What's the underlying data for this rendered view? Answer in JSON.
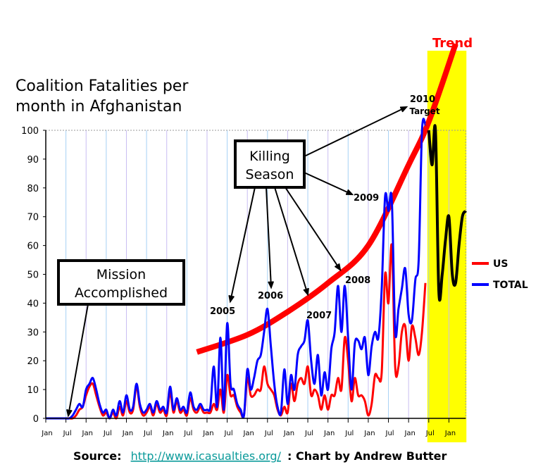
{
  "chart_data": {
    "type": "line",
    "title": "Coalition Fatalities per month in Afghanistan",
    "title_lines": [
      "Coalition Fatalities per",
      "month in Afghanistan"
    ],
    "xlabel": "",
    "ylabel": "",
    "ylim": [
      0,
      100
    ],
    "xlim": [
      "2001-01",
      "2011-06"
    ],
    "yticks": [
      0,
      10,
      20,
      30,
      40,
      50,
      60,
      70,
      80,
      90,
      100
    ],
    "xticks": [
      {
        "x": "2001-01",
        "label": "Jan"
      },
      {
        "x": "2001-07",
        "label": "Jul"
      },
      {
        "x": "2002-01",
        "label": "Jan"
      },
      {
        "x": "2002-07",
        "label": "Jul"
      },
      {
        "x": "2003-01",
        "label": "Jan"
      },
      {
        "x": "2003-07",
        "label": "Jul"
      },
      {
        "x": "2004-01",
        "label": "Jan"
      },
      {
        "x": "2004-07",
        "label": "Jul"
      },
      {
        "x": "2005-01",
        "label": "Jan"
      },
      {
        "x": "2005-07",
        "label": "Jul"
      },
      {
        "x": "2006-01",
        "label": "Jan"
      },
      {
        "x": "2006-07",
        "label": "Jul"
      },
      {
        "x": "2007-01",
        "label": "Jan"
      },
      {
        "x": "2007-07",
        "label": "Jul"
      },
      {
        "x": "2008-01",
        "label": "Jan"
      },
      {
        "x": "2008-07",
        "label": "Jul"
      },
      {
        "x": "2009-01",
        "label": "Jan"
      },
      {
        "x": "2009-07",
        "label": "Jul"
      },
      {
        "x": "2010-01",
        "label": "Jan"
      },
      {
        "x": "2010-07",
        "label": "Jul"
      },
      {
        "x": "2011-01",
        "label": "Jan"
      }
    ],
    "grid": "vertical",
    "legend_placement": "right",
    "x": [
      "2001-01",
      "2001-02",
      "2001-03",
      "2001-04",
      "2001-05",
      "2001-06",
      "2001-07",
      "2001-08",
      "2001-09",
      "2001-10",
      "2001-11",
      "2001-12",
      "2002-01",
      "2002-02",
      "2002-03",
      "2002-04",
      "2002-05",
      "2002-06",
      "2002-07",
      "2002-08",
      "2002-09",
      "2002-10",
      "2002-11",
      "2002-12",
      "2003-01",
      "2003-02",
      "2003-03",
      "2003-04",
      "2003-05",
      "2003-06",
      "2003-07",
      "2003-08",
      "2003-09",
      "2003-10",
      "2003-11",
      "2003-12",
      "2004-01",
      "2004-02",
      "2004-03",
      "2004-04",
      "2004-05",
      "2004-06",
      "2004-07",
      "2004-08",
      "2004-09",
      "2004-10",
      "2004-11",
      "2004-12",
      "2005-01",
      "2005-02",
      "2005-03",
      "2005-04",
      "2005-05",
      "2005-06",
      "2005-07",
      "2005-08",
      "2005-09",
      "2005-10",
      "2005-11",
      "2005-12",
      "2006-01",
      "2006-02",
      "2006-03",
      "2006-04",
      "2006-05",
      "2006-06",
      "2006-07",
      "2006-08",
      "2006-09",
      "2006-10",
      "2006-11",
      "2006-12",
      "2007-01",
      "2007-02",
      "2007-03",
      "2007-04",
      "2007-05",
      "2007-06",
      "2007-07",
      "2007-08",
      "2007-09",
      "2007-10",
      "2007-11",
      "2007-12",
      "2008-01",
      "2008-02",
      "2008-03",
      "2008-04",
      "2008-05",
      "2008-06",
      "2008-07",
      "2008-08",
      "2008-09",
      "2008-10",
      "2008-11",
      "2008-12",
      "2009-01",
      "2009-02",
      "2009-03",
      "2009-04",
      "2009-05",
      "2009-06",
      "2009-07",
      "2009-08",
      "2009-09",
      "2009-10",
      "2009-11",
      "2009-12",
      "2010-01",
      "2010-02",
      "2010-03",
      "2010-04",
      "2010-05",
      "2010-06"
    ],
    "series": [
      {
        "name": "US",
        "color": "#ff0000",
        "values": [
          0,
          0,
          0,
          0,
          0,
          0,
          0,
          0,
          0,
          1,
          3,
          4,
          8,
          11,
          12,
          8,
          4,
          1,
          2,
          0,
          2,
          0,
          4,
          1,
          6,
          2,
          3,
          11,
          4,
          1,
          2,
          4,
          1,
          5,
          2,
          3,
          1,
          9,
          2,
          6,
          2,
          3,
          1,
          7,
          3,
          2,
          4,
          2,
          2,
          2,
          5,
          3,
          10,
          2,
          15,
          8,
          8,
          4,
          2,
          1,
          14,
          8,
          8,
          10,
          10,
          18,
          12,
          10,
          8,
          3,
          1,
          4,
          2,
          12,
          6,
          12,
          14,
          12,
          18,
          8,
          10,
          8,
          3,
          8,
          3,
          8,
          8,
          14,
          10,
          28,
          20,
          6,
          14,
          8,
          8,
          6,
          1,
          5,
          15,
          14,
          16,
          50,
          40,
          60,
          18,
          18,
          30,
          32,
          20,
          32,
          28,
          22,
          30,
          47
        ]
      },
      {
        "name": "TOTAL",
        "color": "#0000ff",
        "values": [
          0,
          0,
          0,
          0,
          0,
          0,
          0,
          0,
          1,
          3,
          5,
          4,
          10,
          12,
          14,
          10,
          5,
          2,
          3,
          0,
          3,
          1,
          6,
          2,
          8,
          3,
          4,
          12,
          5,
          2,
          3,
          5,
          2,
          6,
          3,
          4,
          2,
          11,
          3,
          7,
          3,
          4,
          2,
          9,
          4,
          3,
          5,
          3,
          3,
          4,
          18,
          4,
          28,
          3,
          33,
          12,
          10,
          5,
          3,
          1,
          17,
          10,
          14,
          20,
          22,
          30,
          38,
          25,
          12,
          4,
          2,
          17,
          5,
          15,
          10,
          22,
          25,
          27,
          34,
          20,
          12,
          22,
          8,
          16,
          10,
          24,
          30,
          46,
          30,
          46,
          28,
          10,
          26,
          27,
          24,
          28,
          15,
          25,
          30,
          28,
          45,
          77,
          72,
          76,
          30,
          38,
          45,
          52,
          36,
          34,
          48,
          55,
          100,
          102
        ]
      }
    ],
    "projection": {
      "color": "#000000",
      "x": [
        "2010-07",
        "2010-08",
        "2010-09",
        "2010-10",
        "2010-11",
        "2010-12",
        "2011-01",
        "2011-02",
        "2011-03",
        "2011-04",
        "2011-05",
        "2011-06"
      ],
      "values": [
        100,
        88,
        100,
        44,
        50,
        62,
        70,
        50,
        47,
        60,
        70,
        72
      ]
    },
    "trend": {
      "label": "Trend",
      "color": "#ff0000",
      "x": [
        "2004-10",
        "2006-01",
        "2007-01",
        "2008-01",
        "2009-01",
        "2010-01",
        "2010-07",
        "2011-03"
      ],
      "values": [
        23,
        29,
        37,
        47,
        60,
        88,
        103,
        130
      ]
    },
    "highlight": {
      "color": "#ffff00",
      "from": "2010-07",
      "to": "2011-06"
    },
    "annotations": {
      "mission": [
        "Mission",
        "Accomplished"
      ],
      "killing": [
        "Killing",
        "Season"
      ],
      "years": [
        "2005",
        "2006",
        "2007",
        "2008",
        "2009"
      ],
      "target": [
        "2010",
        "Target"
      ]
    }
  },
  "source": {
    "label": "Source:",
    "link": "http://www.icasualties.org/",
    "credit": ": Chart by Andrew Butter"
  }
}
